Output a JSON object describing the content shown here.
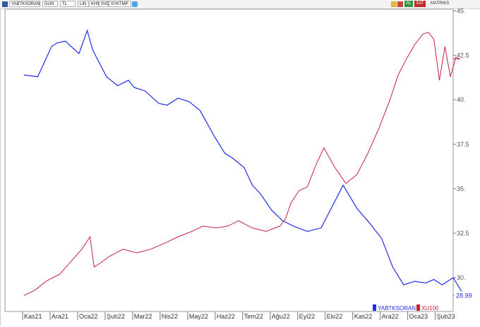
{
  "toolbar": {
    "symbol": "YABTKSORAN",
    "period": "GUN",
    "currency": "TL",
    "scale": "LIN",
    "opt1": "KHN",
    "opt2": "SVD",
    "opt3": "SYKTMP",
    "buy": "AL",
    "sell": "SAT",
    "matriks": "MATRIKS",
    "colors": {
      "sell": "#c22a2a",
      "buy": "#2c9a3c"
    },
    "icons": [
      "matriks-logo-icon",
      "twitter-icon",
      "folder-icon",
      "lines-icon"
    ]
  },
  "chart_data": {
    "type": "line",
    "x_ticks": [
      "Kas21",
      "Ara21",
      "Oca22",
      "Şub22",
      "Mar22",
      "Nis22",
      "May22",
      "Haz22",
      "Tem22",
      "Ağu22",
      "Eyl22",
      "Eki22",
      "Kas22",
      "Ara22",
      "Oca23",
      "Şub23"
    ],
    "y_axis": {
      "position": "right",
      "ticks": [
        "45.",
        "42.5",
        "40.",
        "37.5",
        "35.",
        "32.5",
        "30."
      ],
      "ylim": [
        28.1,
        45.1
      ]
    },
    "last_value_label": "28.99",
    "legend": {
      "placement": "bottom-right",
      "entries": [
        "YABTKSORAN",
        "XU100"
      ]
    },
    "grid": false,
    "series": [
      {
        "name": "YABTKSORAN",
        "color": "#1f2fe8",
        "x": [
          0,
          0.5,
          1,
          1.2,
          1.5,
          2,
          2.3,
          2.5,
          3,
          3.4,
          3.8,
          4,
          4.4,
          4.9,
          5.2,
          5.6,
          6,
          6.4,
          6.9,
          7.3,
          7.6,
          8,
          8.3,
          8.6,
          9,
          9.4,
          9.8,
          10.3,
          10.8,
          11.2,
          11.6,
          12.1,
          12.6,
          13,
          13.4,
          13.8,
          14.2,
          14.6,
          14.9,
          15.2,
          15.4,
          15.6,
          16
        ],
        "y": [
          41.4,
          41.3,
          43.0,
          43.2,
          43.3,
          42.6,
          43.9,
          42.8,
          41.3,
          40.8,
          41.1,
          40.7,
          40.5,
          39.8,
          39.7,
          40.1,
          39.9,
          39.4,
          38.0,
          37.0,
          36.7,
          36.2,
          35.2,
          34.7,
          33.8,
          33.2,
          32.9,
          32.6,
          32.8,
          34.0,
          35.2,
          33.9,
          33.0,
          32.2,
          30.6,
          29.6,
          29.8,
          29.7,
          29.9,
          29.6,
          29.8,
          30.0,
          29.0
        ]
      },
      {
        "name": "XU100",
        "color": "#c81f3c",
        "x": [
          0,
          0.4,
          0.8,
          1.3,
          1.7,
          2.1,
          2.4,
          2.55,
          2.75,
          3.1,
          3.6,
          4.1,
          4.6,
          5.2,
          5.6,
          6.1,
          6.5,
          7.0,
          7.4,
          7.8,
          8.3,
          8.8,
          9.3,
          9.5,
          9.7,
          10,
          10.3,
          10.6,
          10.9,
          11.3,
          11.7,
          12.1,
          12.5,
          12.9,
          13.3,
          13.6,
          13.9,
          14.2,
          14.5,
          14.7,
          14.9,
          15.1,
          15.3,
          15.5,
          15.7,
          15.85
        ],
        "y": [
          29.0,
          29.3,
          29.8,
          30.2,
          30.9,
          31.6,
          32.3,
          30.6,
          30.8,
          31.2,
          31.6,
          31.4,
          31.6,
          32.0,
          32.3,
          32.6,
          32.9,
          32.8,
          32.9,
          33.2,
          32.8,
          32.6,
          32.9,
          33.3,
          34.2,
          34.9,
          35.1,
          36.3,
          37.3,
          36.2,
          35.3,
          35.8,
          37.0,
          38.4,
          40.0,
          41.4,
          42.3,
          43.1,
          43.7,
          43.8,
          43.4,
          41.1,
          43.0,
          41.3,
          42.4,
          42.3
        ]
      }
    ]
  }
}
